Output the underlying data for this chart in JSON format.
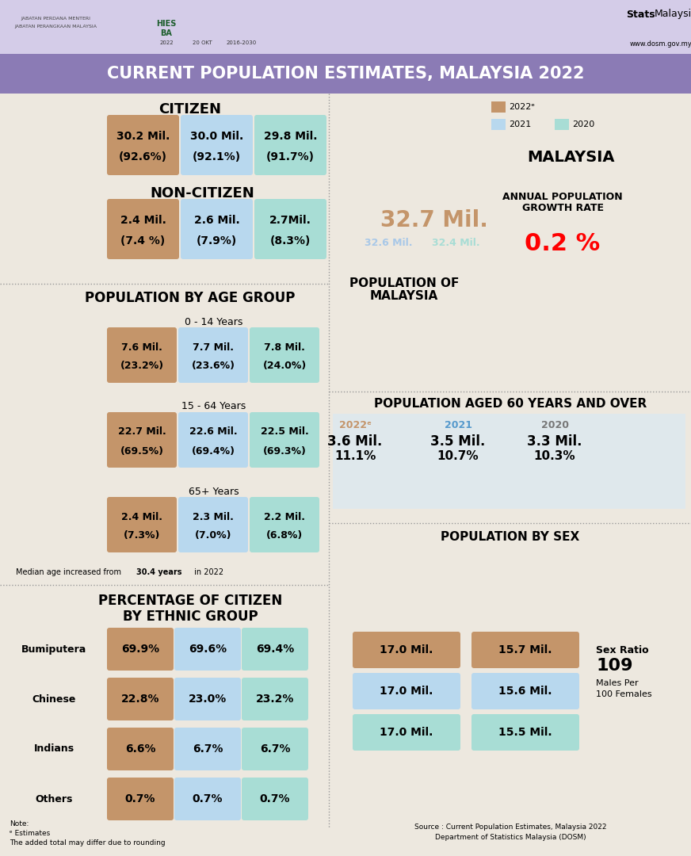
{
  "title": "CURRENT POPULATION ESTIMATES, MALAYSIA 2022",
  "header_bg": "#D4CCE8",
  "title_bg": "#8B7BB5",
  "body_bg": "#EDE8DF",
  "color_2022e": "#C4956A",
  "color_2021": "#B8D8EE",
  "color_2020": "#A8DDD5",
  "citizen": {
    "title": "CITIZEN",
    "data": [
      {
        "value": "30.2 Mil.",
        "pct": "(92.6%)",
        "color": "#C4956A"
      },
      {
        "value": "30.0 Mil.",
        "pct": "(92.1%)",
        "color": "#B8D8EE"
      },
      {
        "value": "29.8 Mil.",
        "pct": "(91.7%)",
        "color": "#A8DDD5"
      }
    ]
  },
  "non_citizen": {
    "title": "NON-CITIZEN",
    "data": [
      {
        "value": "2.4 Mil.",
        "pct": "(7.4 %)",
        "color": "#C4956A"
      },
      {
        "value": "2.6 Mil.",
        "pct": "(7.9%)",
        "color": "#B8D8EE"
      },
      {
        "value": "2.7Mil.",
        "pct": "(8.3%)",
        "color": "#A8DDD5"
      }
    ]
  },
  "age_groups": [
    {
      "label": "0 - 14 Years",
      "data": [
        {
          "value": "7.6 Mil.",
          "pct": "(23.2%)",
          "color": "#C4956A"
        },
        {
          "value": "7.7 Mil.",
          "pct": "(23.6%)",
          "color": "#B8D8EE"
        },
        {
          "value": "7.8 Mil.",
          "pct": "(24.0%)",
          "color": "#A8DDD5"
        }
      ]
    },
    {
      "label": "15 - 64 Years",
      "data": [
        {
          "value": "22.7 Mil.",
          "pct": "(69.5%)",
          "color": "#C4956A"
        },
        {
          "value": "22.6 Mil.",
          "pct": "(69.4%)",
          "color": "#B8D8EE"
        },
        {
          "value": "22.5 Mil.",
          "pct": "(69.3%)",
          "color": "#A8DDD5"
        }
      ]
    },
    {
      "label": "65+ Years",
      "data": [
        {
          "value": "2.4 Mil.",
          "pct": "(7.3%)",
          "color": "#C4956A"
        },
        {
          "value": "2.3 Mil.",
          "pct": "(7.0%)",
          "color": "#B8D8EE"
        },
        {
          "value": "2.2 Mil.",
          "pct": "(6.8%)",
          "color": "#A8DDD5"
        }
      ]
    }
  ],
  "ethnic_groups": [
    {
      "name": "Bumiputera",
      "data": [
        {
          "value": "69.9%",
          "color": "#C4956A"
        },
        {
          "value": "69.6%",
          "color": "#B8D8EE"
        },
        {
          "value": "69.4%",
          "color": "#A8DDD5"
        }
      ]
    },
    {
      "name": "Chinese",
      "data": [
        {
          "value": "22.8%",
          "color": "#C4956A"
        },
        {
          "value": "23.0%",
          "color": "#B8D8EE"
        },
        {
          "value": "23.2%",
          "color": "#A8DDD5"
        }
      ]
    },
    {
      "name": "Indians",
      "data": [
        {
          "value": "6.6%",
          "color": "#C4956A"
        },
        {
          "value": "6.7%",
          "color": "#B8D8EE"
        },
        {
          "value": "6.7%",
          "color": "#A8DDD5"
        }
      ]
    },
    {
      "name": "Others",
      "data": [
        {
          "value": "0.7%",
          "color": "#C4956A"
        },
        {
          "value": "0.7%",
          "color": "#B8D8EE"
        },
        {
          "value": "0.7%",
          "color": "#A8DDD5"
        }
      ]
    }
  ],
  "malaysia_pop": {
    "main": "32.7 Mil.",
    "y2021": "32.6 Mil.",
    "y2020": "32.4 Mil.",
    "growth_rate": "0.2 %"
  },
  "pop60": {
    "title": "POPULATION AGED 60 YEARS AND OVER",
    "bg_color": "#DCE8F0",
    "data": [
      {
        "year": "2022ᵉ",
        "value": "3.6 Mil.",
        "pct": "11.1%",
        "year_color": "#C4956A"
      },
      {
        "year": "2021",
        "value": "3.5 Mil.",
        "pct": "10.7%",
        "year_color": "#5599CC"
      },
      {
        "year": "2020",
        "value": "3.3 Mil.",
        "pct": "10.3%",
        "year_color": "#777777"
      }
    ]
  },
  "sex_data": {
    "title": "POPULATION BY SEX",
    "rows": [
      {
        "male": "17.0 Mil.",
        "female": "15.7 Mil.",
        "color": "#C4956A"
      },
      {
        "male": "17.0 Mil.",
        "female": "15.6 Mil.",
        "color": "#B8D8EE"
      },
      {
        "male": "17.0 Mil.",
        "female": "15.5 Mil.",
        "color": "#A8DDD5"
      }
    ],
    "sex_ratio": "109",
    "sex_ratio_sub": "Males Per\n100 Females"
  },
  "note_lines": [
    "Note:",
    "ᵉ Estimates",
    "The added total may differ due to rounding"
  ],
  "source": "Source : Current Population Estimates, Malaysia 2022\nDepartment of Statistics Malaysia (DOSM)"
}
